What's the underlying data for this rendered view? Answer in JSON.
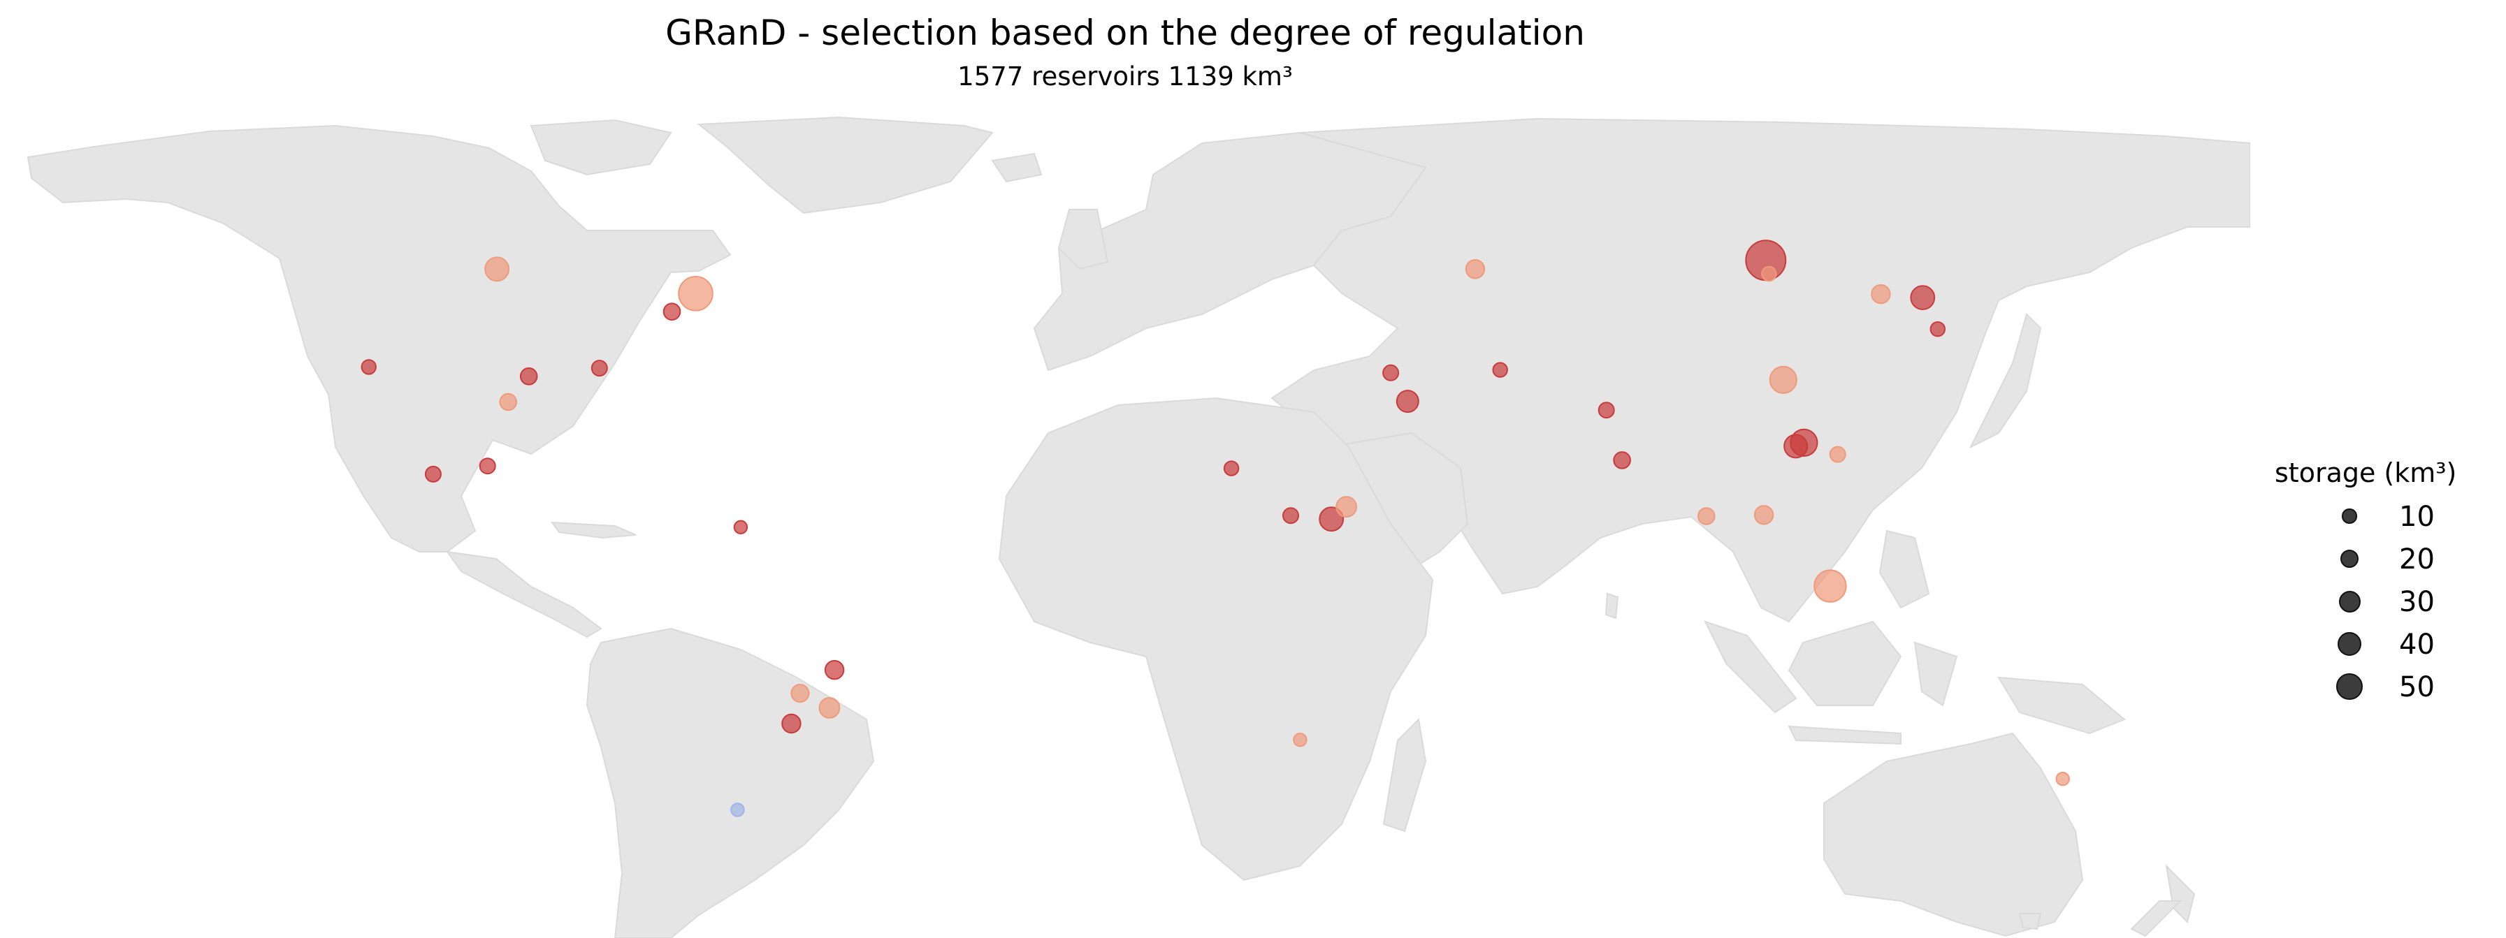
{
  "chart_data": {
    "type": "bubble-map",
    "title": "GRanD - selection based on the degree of regulation",
    "subtitle": "1577 reservoirs   1139 km³",
    "legend": {
      "title": "storage (km³)",
      "entries": [
        10,
        20,
        30,
        40,
        50
      ],
      "placement": "right"
    },
    "colors": {
      "land": "#e5e5e5",
      "coastline": "#dadada",
      "high_regulation": "#c93b3b",
      "mid_regulation": "#ef9a7a",
      "low_regulation": "#9fb3e6",
      "legend_marker": "#3c3c3c"
    },
    "points": [
      {
        "lon": 102.5,
        "lat": 56.3,
        "storage": 50,
        "level": "high"
      },
      {
        "lon": -68.7,
        "lat": 50.6,
        "storage": 35,
        "level": "mid"
      },
      {
        "lon": 112.8,
        "lat": 0.4,
        "storage": 30,
        "level": "mid"
      },
      {
        "lon": 105.3,
        "lat": 35.8,
        "storage": 20,
        "level": "mid"
      },
      {
        "lon": 33.0,
        "lat": 11.9,
        "storage": 15,
        "level": "high"
      },
      {
        "lon": 108.6,
        "lat": 25.0,
        "storage": 20,
        "level": "high"
      },
      {
        "lon": 127.6,
        "lat": 49.9,
        "storage": 15,
        "level": "high"
      },
      {
        "lon": -100.5,
        "lat": 54.8,
        "storage": 15,
        "level": "mid"
      },
      {
        "lon": 107.3,
        "lat": 24.4,
        "storage": 14,
        "level": "high"
      },
      {
        "lon": 45.2,
        "lat": 32.1,
        "storage": 12,
        "level": "high"
      },
      {
        "lon": 56.0,
        "lat": 54.8,
        "storage": 8,
        "level": "mid"
      },
      {
        "lon": 35.4,
        "lat": 14.0,
        "storage": 10,
        "level": "mid"
      },
      {
        "lon": -47.3,
        "lat": -20.5,
        "storage": 10,
        "level": "mid"
      },
      {
        "lon": -46.5,
        "lat": -14.0,
        "storage": 8,
        "level": "high"
      },
      {
        "lon": -53.4,
        "lat": -23.2,
        "storage": 8,
        "level": "high"
      },
      {
        "lon": -52.0,
        "lat": -18.0,
        "storage": 7,
        "level": "mid"
      },
      {
        "lon": 120.9,
        "lat": 50.5,
        "storage": 8,
        "level": "mid"
      },
      {
        "lon": 79.5,
        "lat": 22.0,
        "storage": 6,
        "level": "high"
      },
      {
        "lon": 26.5,
        "lat": 12.5,
        "storage": 5,
        "level": "high"
      },
      {
        "lon": 102.2,
        "lat": 12.6,
        "storage": 8,
        "level": "mid"
      },
      {
        "lon": 93.0,
        "lat": 12.4,
        "storage": 6,
        "level": "mid"
      },
      {
        "lon": -72.5,
        "lat": 47.5,
        "storage": 6,
        "level": "high"
      },
      {
        "lon": -95.4,
        "lat": 36.4,
        "storage": 6,
        "level": "high"
      },
      {
        "lon": -102.0,
        "lat": 21.0,
        "storage": 5,
        "level": "high"
      },
      {
        "lon": -84.1,
        "lat": 37.8,
        "storage": 5,
        "level": "high"
      },
      {
        "lon": -98.7,
        "lat": 32.0,
        "storage": 6,
        "level": "mid"
      },
      {
        "lon": -121.0,
        "lat": 38.0,
        "storage": 4,
        "level": "high"
      },
      {
        "lon": -110.7,
        "lat": 19.6,
        "storage": 5,
        "level": "high"
      },
      {
        "lon": 77.0,
        "lat": 30.6,
        "storage": 5,
        "level": "high"
      },
      {
        "lon": 60.0,
        "lat": 37.5,
        "storage": 4,
        "level": "high"
      },
      {
        "lon": 114.0,
        "lat": 23.0,
        "storage": 5,
        "level": "mid"
      },
      {
        "lon": 103.0,
        "lat": 54.0,
        "storage": 4,
        "level": "mid"
      },
      {
        "lon": 42.5,
        "lat": 37.0,
        "storage": 5,
        "level": "high"
      },
      {
        "lon": 17.0,
        "lat": 20.6,
        "storage": 4,
        "level": "high"
      },
      {
        "lon": 130.0,
        "lat": 44.5,
        "storage": 4,
        "level": "high"
      },
      {
        "lon": 28.0,
        "lat": -26.0,
        "storage": 3,
        "level": "mid"
      },
      {
        "lon": 150.0,
        "lat": -32.7,
        "storage": 3,
        "level": "mid"
      },
      {
        "lon": -62.0,
        "lat": -38.0,
        "storage": 3,
        "level": "low"
      },
      {
        "lon": -61.5,
        "lat": 10.5,
        "storage": 3,
        "level": "high"
      }
    ]
  }
}
